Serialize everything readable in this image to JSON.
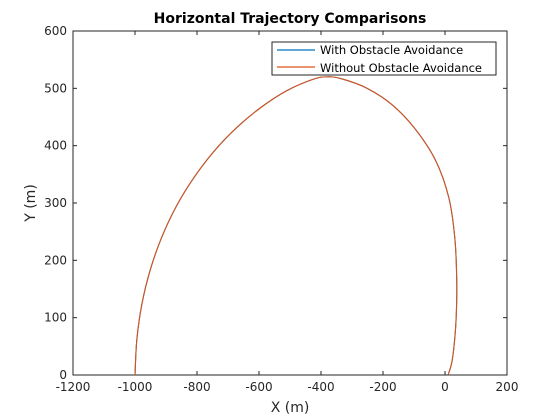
{
  "chart_data": {
    "type": "line",
    "title": "Horizontal Trajectory Comparisons",
    "xlabel": "X (m)",
    "ylabel": "Y (m)",
    "xlim": [
      -1200,
      200
    ],
    "ylim": [
      0,
      600
    ],
    "xticks": [
      -1200,
      -1000,
      -800,
      -600,
      -400,
      -200,
      0,
      200
    ],
    "yticks": [
      0,
      100,
      200,
      300,
      400,
      500,
      600
    ],
    "grid": false,
    "legend_position": "top-right",
    "series": [
      {
        "name": "With Obstacle Avoidance",
        "color": "#0072BD",
        "x": [
          -1000,
          -994,
          -978,
          -951,
          -914,
          -866,
          -809,
          -744,
          -671,
          -593,
          -510,
          -424,
          -381,
          -336,
          -251,
          -170,
          -96,
          -31,
          12,
          32,
          38,
          36,
          30,
          22,
          10
        ],
        "y": [
          0,
          62,
          123,
          183,
          240,
          295,
          345,
          391,
          432,
          467,
          496,
          516,
          520,
          517,
          500,
          471,
          429,
          375,
          310,
          237,
          160,
          100,
          55,
          22,
          0
        ]
      },
      {
        "name": "Without Obstacle Avoidance",
        "color": "#D95319",
        "x": [
          -1000,
          -994,
          -978,
          -951,
          -914,
          -866,
          -809,
          -744,
          -671,
          -593,
          -510,
          -424,
          -381,
          -336,
          -251,
          -170,
          -96,
          -31,
          12,
          32,
          38,
          36,
          30,
          22,
          10
        ],
        "y": [
          0,
          62,
          123,
          183,
          240,
          295,
          345,
          391,
          432,
          467,
          496,
          516,
          520,
          517,
          500,
          471,
          429,
          375,
          310,
          237,
          160,
          100,
          55,
          22,
          0
        ]
      }
    ]
  }
}
